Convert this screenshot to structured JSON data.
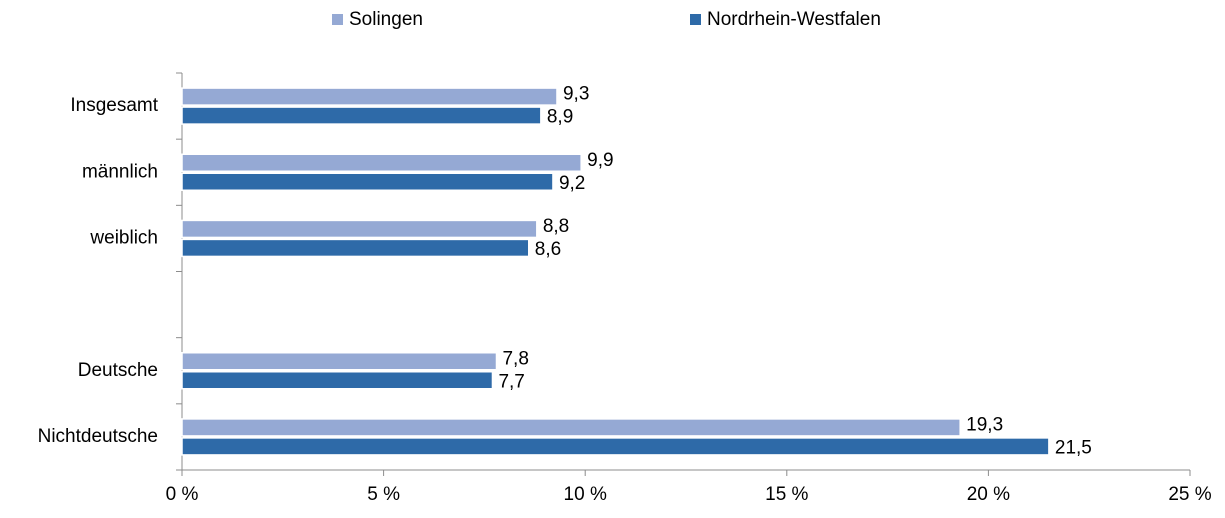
{
  "chart_data": {
    "type": "hbar",
    "categories": [
      "Insgesamt",
      "männlich",
      "weiblich",
      null,
      "Deutsche",
      "Nichtdeutsche"
    ],
    "series": [
      {
        "name": "Solingen",
        "color": "#95a9d4",
        "values": [
          9.3,
          9.9,
          8.8,
          null,
          7.8,
          19.3
        ],
        "value_labels": [
          "9,3",
          "9,9",
          "8,8",
          null,
          "7,8",
          "19,3"
        ]
      },
      {
        "name": "Nordrhein-Westfalen",
        "color": "#2e6aa8",
        "values": [
          8.9,
          9.2,
          8.6,
          null,
          7.7,
          21.5
        ],
        "value_labels": [
          "8,9",
          "9,2",
          "8,6",
          null,
          "7,7",
          "21,5"
        ]
      }
    ],
    "xlim": [
      0,
      25
    ],
    "xticks": [
      {
        "value": 0,
        "label": "0 %"
      },
      {
        "value": 5,
        "label": "5 %"
      },
      {
        "value": 10,
        "label": "10 %"
      },
      {
        "value": 15,
        "label": "15 %"
      },
      {
        "value": 20,
        "label": "20 %"
      },
      {
        "value": 25,
        "label": "25 %"
      }
    ],
    "legend": "top"
  }
}
